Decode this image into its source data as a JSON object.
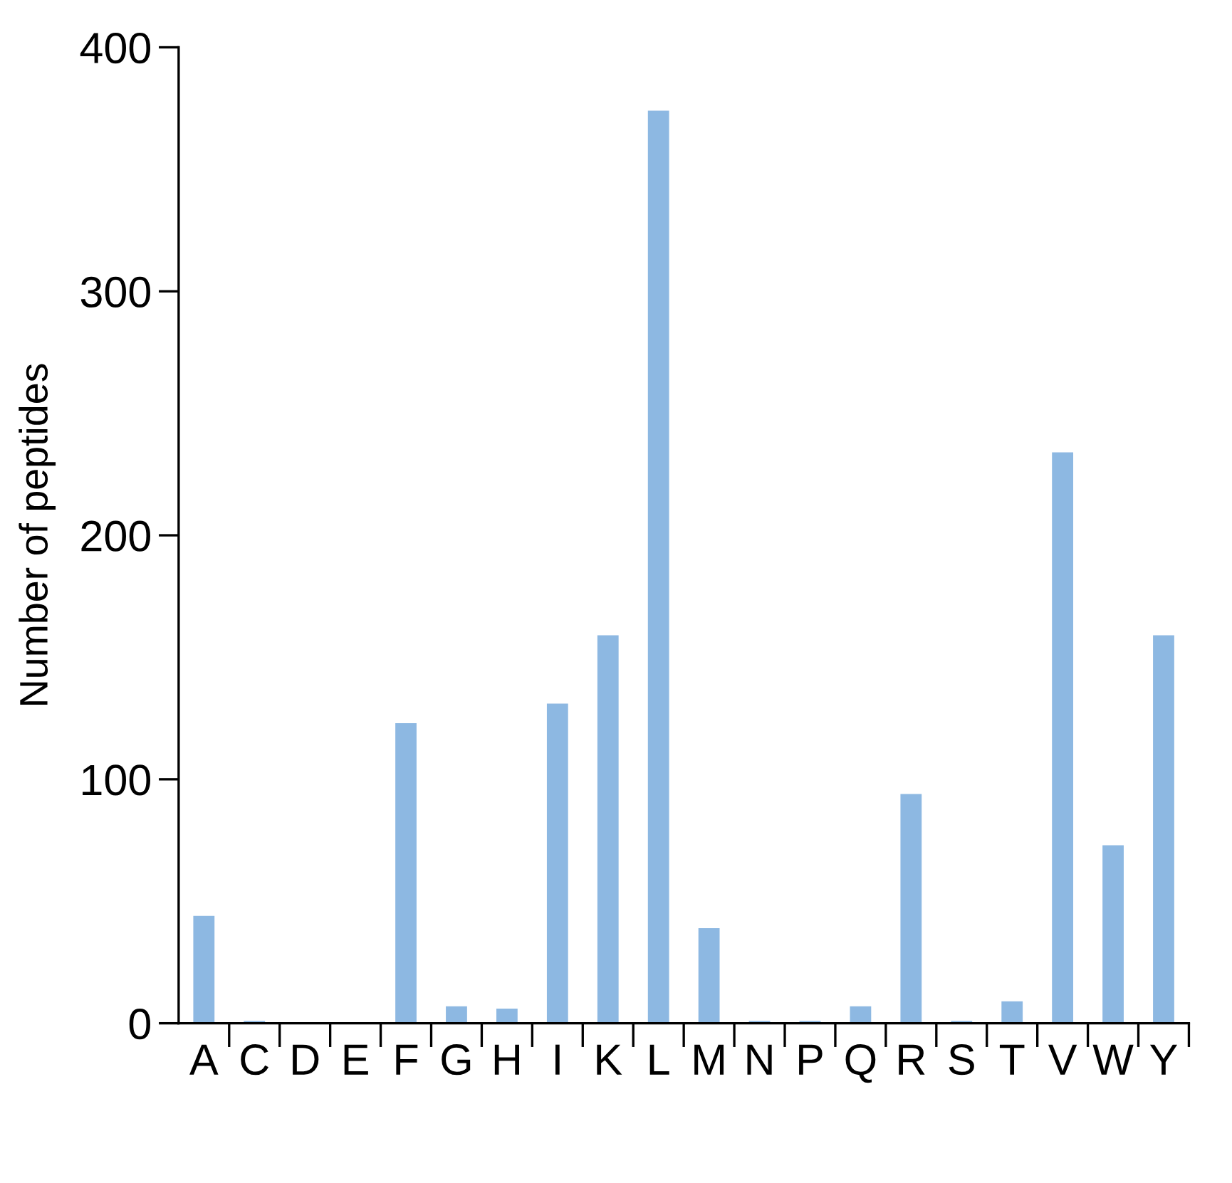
{
  "chart_data": {
    "type": "bar",
    "ylabel": "Number of peptides",
    "categories": [
      "A",
      "C",
      "D",
      "E",
      "F",
      "G",
      "H",
      "I",
      "K",
      "L",
      "M",
      "N",
      "P",
      "Q",
      "R",
      "S",
      "T",
      "V",
      "W",
      "Y"
    ],
    "values": [
      44,
      1,
      0.5,
      0.5,
      123,
      7,
      6,
      131,
      159,
      374,
      39,
      1,
      1,
      7,
      94,
      1,
      9,
      234,
      73,
      159
    ],
    "color": "#8db8e2",
    "ylim": [
      0,
      400
    ],
    "yticks": [
      0,
      100,
      200,
      300,
      400
    ],
    "grid": false
  }
}
